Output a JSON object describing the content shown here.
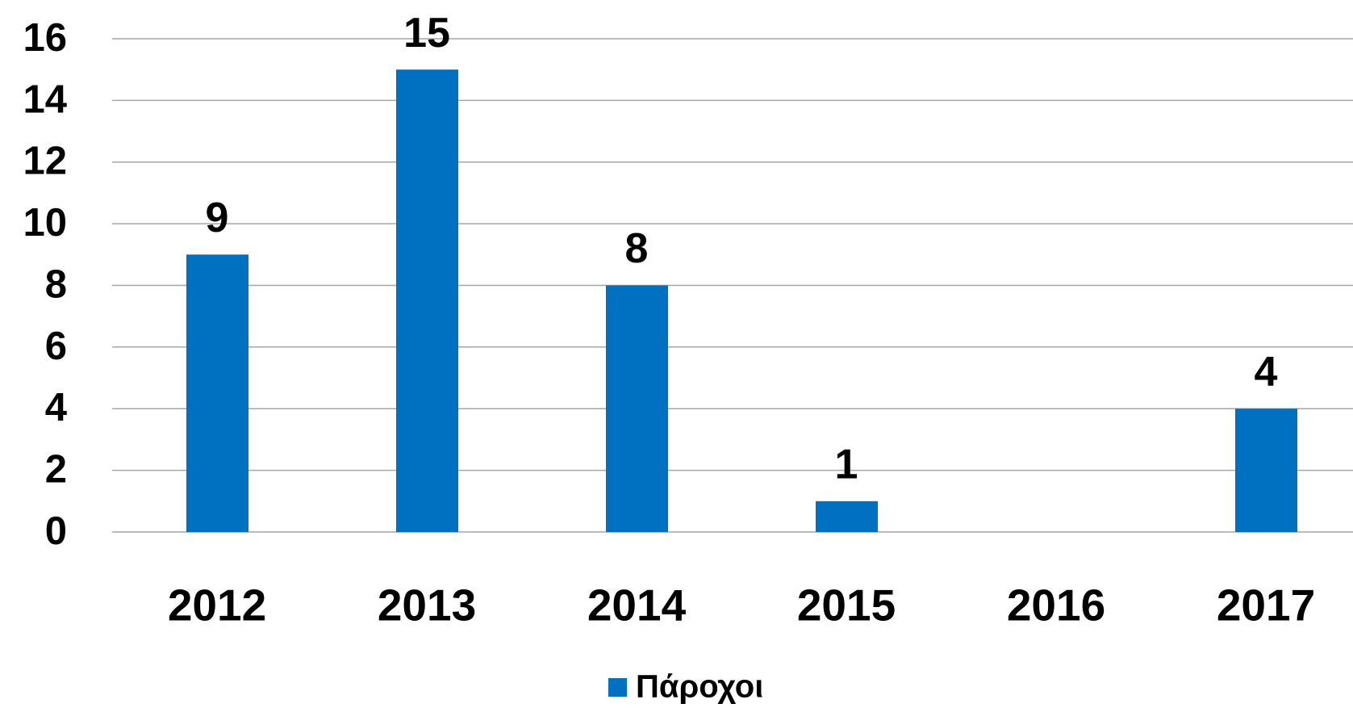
{
  "chart_data": {
    "type": "bar",
    "categories": [
      "2012",
      "2013",
      "2014",
      "2015",
      "2016",
      "2017"
    ],
    "series": [
      {
        "name": "Πάροχοι",
        "color": "#0070c0",
        "values": [
          9,
          15,
          8,
          1,
          null,
          4
        ]
      }
    ],
    "ylim": [
      0,
      16
    ],
    "yticks": [
      0,
      2,
      4,
      6,
      8,
      10,
      12,
      14,
      16
    ],
    "grid": true,
    "legend": "bottom"
  }
}
